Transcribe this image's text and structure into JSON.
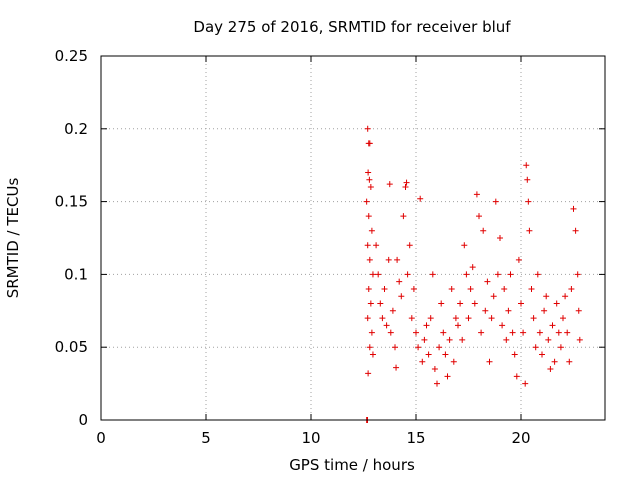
{
  "chart_data": {
    "type": "scatter",
    "title": "Day 275 of 2016, SRMTID for receiver bluf",
    "xlabel": "GPS time / hours",
    "ylabel": "SRMTID / TECUs",
    "xlim": [
      0,
      24
    ],
    "ylim": [
      0,
      0.25
    ],
    "xticks": [
      0,
      5,
      10,
      15,
      20
    ],
    "xtick_labels": [
      "0",
      "5",
      "10",
      "15",
      "20"
    ],
    "yticks": [
      0,
      0.05,
      0.1,
      0.15,
      0.2,
      0.25
    ],
    "ytick_labels": [
      "0",
      "0.05",
      "0.1",
      "0.15",
      "0.2",
      "0.25"
    ],
    "grid": true,
    "marker": "+",
    "color": "#e00000",
    "series": [
      {
        "name": "SRMTID",
        "points": [
          [
            12.65,
            0.0
          ],
          [
            12.67,
            0.0
          ],
          [
            12.69,
            0.0
          ],
          [
            12.7,
            0.2
          ],
          [
            12.75,
            0.19
          ],
          [
            12.8,
            0.19
          ],
          [
            12.72,
            0.17
          ],
          [
            12.78,
            0.165
          ],
          [
            12.85,
            0.16
          ],
          [
            12.65,
            0.15
          ],
          [
            12.75,
            0.14
          ],
          [
            12.9,
            0.13
          ],
          [
            12.7,
            0.12
          ],
          [
            12.8,
            0.11
          ],
          [
            12.95,
            0.1
          ],
          [
            12.75,
            0.09
          ],
          [
            12.85,
            0.08
          ],
          [
            12.7,
            0.07
          ],
          [
            12.9,
            0.06
          ],
          [
            12.8,
            0.05
          ],
          [
            12.95,
            0.045
          ],
          [
            12.72,
            0.032
          ],
          [
            13.1,
            0.12
          ],
          [
            13.2,
            0.1
          ],
          [
            13.3,
            0.08
          ],
          [
            13.4,
            0.07
          ],
          [
            13.5,
            0.09
          ],
          [
            13.6,
            0.065
          ],
          [
            13.7,
            0.11
          ],
          [
            13.75,
            0.162
          ],
          [
            13.8,
            0.06
          ],
          [
            13.9,
            0.075
          ],
          [
            14.0,
            0.05
          ],
          [
            14.05,
            0.036
          ],
          [
            14.1,
            0.11
          ],
          [
            14.2,
            0.095
          ],
          [
            14.3,
            0.085
          ],
          [
            14.4,
            0.14
          ],
          [
            14.5,
            0.16
          ],
          [
            14.55,
            0.163
          ],
          [
            14.6,
            0.1
          ],
          [
            14.7,
            0.12
          ],
          [
            14.8,
            0.07
          ],
          [
            14.9,
            0.09
          ],
          [
            15.0,
            0.06
          ],
          [
            15.1,
            0.05
          ],
          [
            15.2,
            0.152
          ],
          [
            15.3,
            0.04
          ],
          [
            15.4,
            0.055
          ],
          [
            15.5,
            0.065
          ],
          [
            15.6,
            0.045
          ],
          [
            15.7,
            0.07
          ],
          [
            15.8,
            0.1
          ],
          [
            15.9,
            0.035
          ],
          [
            16.0,
            0.025
          ],
          [
            16.1,
            0.05
          ],
          [
            16.2,
            0.08
          ],
          [
            16.3,
            0.06
          ],
          [
            16.4,
            0.045
          ],
          [
            16.5,
            0.03
          ],
          [
            16.6,
            0.055
          ],
          [
            16.7,
            0.09
          ],
          [
            16.8,
            0.04
          ],
          [
            16.9,
            0.07
          ],
          [
            17.0,
            0.065
          ],
          [
            17.1,
            0.08
          ],
          [
            17.2,
            0.055
          ],
          [
            17.3,
            0.12
          ],
          [
            17.4,
            0.1
          ],
          [
            17.5,
            0.07
          ],
          [
            17.6,
            0.09
          ],
          [
            17.7,
            0.105
          ],
          [
            17.8,
            0.08
          ],
          [
            17.9,
            0.155
          ],
          [
            18.0,
            0.14
          ],
          [
            18.1,
            0.06
          ],
          [
            18.2,
            0.13
          ],
          [
            18.3,
            0.075
          ],
          [
            18.4,
            0.095
          ],
          [
            18.5,
            0.04
          ],
          [
            18.6,
            0.07
          ],
          [
            18.7,
            0.085
          ],
          [
            18.8,
            0.15
          ],
          [
            18.9,
            0.1
          ],
          [
            19.0,
            0.125
          ],
          [
            19.1,
            0.065
          ],
          [
            19.2,
            0.09
          ],
          [
            19.3,
            0.055
          ],
          [
            19.4,
            0.075
          ],
          [
            19.5,
            0.1
          ],
          [
            19.6,
            0.06
          ],
          [
            19.7,
            0.045
          ],
          [
            19.8,
            0.03
          ],
          [
            19.9,
            0.11
          ],
          [
            20.0,
            0.08
          ],
          [
            20.1,
            0.06
          ],
          [
            20.2,
            0.025
          ],
          [
            20.25,
            0.175
          ],
          [
            20.3,
            0.165
          ],
          [
            20.35,
            0.15
          ],
          [
            20.4,
            0.13
          ],
          [
            20.5,
            0.09
          ],
          [
            20.6,
            0.07
          ],
          [
            20.7,
            0.05
          ],
          [
            20.8,
            0.1
          ],
          [
            20.9,
            0.06
          ],
          [
            21.0,
            0.045
          ],
          [
            21.1,
            0.075
          ],
          [
            21.2,
            0.085
          ],
          [
            21.3,
            0.055
          ],
          [
            21.4,
            0.035
          ],
          [
            21.5,
            0.065
          ],
          [
            21.6,
            0.04
          ],
          [
            21.7,
            0.08
          ],
          [
            21.8,
            0.06
          ],
          [
            21.9,
            0.05
          ],
          [
            22.0,
            0.07
          ],
          [
            22.1,
            0.085
          ],
          [
            22.2,
            0.06
          ],
          [
            22.3,
            0.04
          ],
          [
            22.4,
            0.09
          ],
          [
            22.5,
            0.145
          ],
          [
            22.6,
            0.13
          ],
          [
            22.7,
            0.1
          ],
          [
            22.75,
            0.075
          ],
          [
            22.8,
            0.055
          ]
        ]
      }
    ]
  }
}
